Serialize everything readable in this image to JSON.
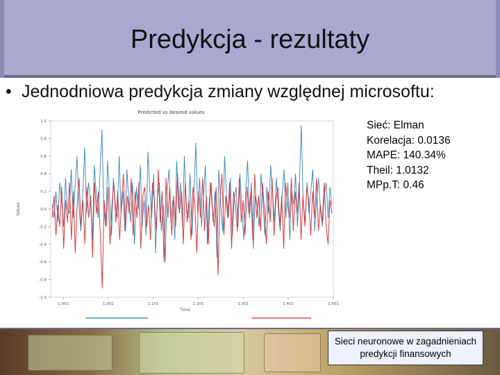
{
  "slide": {
    "title": "Predykcja - rezultaty",
    "bullet": "Jednodniowa predykcja zmiany względnej microsoftu:",
    "stats": [
      "Sieć: Elman",
      "Korelacja: 0.0136",
      "MAPE: 140.34%",
      "Theil: 1.0132",
      "MPp.T: 0.46"
    ],
    "footer": [
      "Sieci neuronowe w zagadnieniach",
      "predykcji finansowych"
    ],
    "colors": {
      "title_bar": "#a8a8d0",
      "predicted": "#1f77b4",
      "actual": "#d62728"
    }
  },
  "chart_data": {
    "type": "line",
    "title": "Predicted vs desired values",
    "xlabel": "Time",
    "ylabel": "Values",
    "ylim": [
      -1.0,
      1.0
    ],
    "yticks": [
      "1.0",
      "0.8",
      "0.6",
      "0.4",
      "0.2",
      "0.0",
      "-0.2",
      "-0.4",
      "-0.6",
      "-0.8",
      "-1.0"
    ],
    "xtick_labels": [
      "1.001",
      "1.001",
      "1.101",
      "1.201",
      "1.301",
      "1.401",
      "1.501"
    ],
    "legend": "bottom",
    "series": [
      {
        "color": "#1f77b4",
        "values": [
          0.05,
          -0.1,
          0.2,
          -0.15,
          0.3,
          0.1,
          -0.2,
          0.35,
          0.0,
          -0.05,
          0.45,
          -0.1,
          0.25,
          0.6,
          0.05,
          -0.25,
          0.15,
          0.7,
          -0.05,
          0.3,
          0.1,
          -0.35,
          0.5,
          0.2,
          -0.1,
          0.4,
          0.9,
          0.0,
          -0.2,
          0.55,
          0.15,
          -0.3,
          0.35,
          0.05,
          -0.1,
          0.6,
          -0.05,
          0.2,
          -0.25,
          0.45,
          0.1,
          -0.15,
          0.3,
          -0.4,
          0.25,
          0.0,
          0.5,
          -0.2,
          0.1,
          -0.3,
          0.65,
          0.2,
          -0.1,
          0.4,
          -0.5,
          0.15,
          0.3,
          -0.25,
          0.05,
          -0.6,
          0.2,
          0.45,
          -0.15,
          0.1,
          -0.35,
          0.55,
          0.0,
          0.3,
          -0.2,
          0.6,
          0.05,
          -0.1,
          0.4,
          -0.3,
          0.2,
          0.75,
          -0.05,
          0.35,
          -0.2,
          0.15,
          0.5,
          -0.4,
          0.1,
          0.3,
          -0.15,
          0.2,
          -0.55,
          0.45,
          0.05,
          -0.25,
          0.6,
          0.15,
          -0.1,
          0.35,
          -0.3,
          0.1,
          0.25,
          -0.2,
          0.4,
          0.0,
          -0.35,
          0.2,
          0.55,
          -0.1,
          0.3,
          -0.45,
          0.15,
          0.05,
          -0.2,
          0.4,
          0.1,
          -0.3,
          0.25,
          -0.05,
          0.5,
          0.2,
          -0.15,
          0.35,
          0.0,
          -0.25,
          0.15,
          0.45,
          -0.1,
          0.3,
          -0.35,
          0.2,
          0.05,
          0.4,
          -0.2,
          0.25,
          0.95,
          0.1,
          -0.15,
          0.3,
          -0.05,
          0.2,
          0.45,
          -0.25,
          0.1,
          0.35,
          0.0,
          -0.2,
          0.15,
          0.3,
          -0.1,
          0.25,
          0.05
        ]
      },
      {
        "color": "#d62728",
        "values": [
          -0.1,
          0.15,
          -0.3,
          0.05,
          -0.2,
          0.25,
          -0.45,
          0.1,
          -0.15,
          0.3,
          -0.35,
          0.2,
          -0.5,
          0.05,
          0.35,
          -0.2,
          0.1,
          -0.4,
          0.25,
          -0.1,
          0.15,
          -0.55,
          0.3,
          -0.05,
          0.2,
          -0.3,
          -0.9,
          0.1,
          -0.2,
          0.25,
          -0.4,
          0.05,
          0.3,
          -0.15,
          0.2,
          -0.35,
          0.1,
          0.4,
          -0.25,
          0.15,
          -0.05,
          0.35,
          -0.3,
          0.2,
          -0.1,
          0.3,
          -0.45,
          0.15,
          0.25,
          -0.2,
          0.05,
          -0.35,
          0.3,
          0.1,
          -0.25,
          0.45,
          -0.15,
          0.2,
          -0.6,
          0.35,
          -0.1,
          0.25,
          -0.3,
          0.15,
          -0.2,
          0.4,
          -0.05,
          0.2,
          -0.4,
          0.3,
          -0.15,
          0.1,
          -0.35,
          0.25,
          0.05,
          -0.5,
          0.2,
          -0.1,
          0.35,
          -0.25,
          0.15,
          -0.4,
          0.3,
          0.0,
          -0.2,
          0.25,
          -0.75,
          0.1,
          0.4,
          -0.3,
          0.15,
          -0.1,
          0.3,
          -0.45,
          0.2,
          0.05,
          -0.25,
          0.35,
          -0.15,
          0.1,
          -0.3,
          0.25,
          -0.05,
          0.2,
          -0.35,
          0.4,
          -0.1,
          0.15,
          -0.25,
          0.3,
          0.0,
          -0.4,
          0.2,
          -0.15,
          0.35,
          -0.3,
          0.1,
          0.25,
          -0.2,
          0.15,
          -0.45,
          0.3,
          0.05,
          -0.1,
          0.35,
          -0.25,
          0.2,
          -0.05,
          0.3,
          -0.35,
          0.15,
          -0.2,
          0.25,
          0.1,
          -0.3,
          0.2,
          -0.1,
          0.35,
          -0.25,
          0.05,
          -0.15,
          0.3,
          -0.2,
          -0.4,
          0.1,
          -0.05
        ]
      }
    ]
  }
}
